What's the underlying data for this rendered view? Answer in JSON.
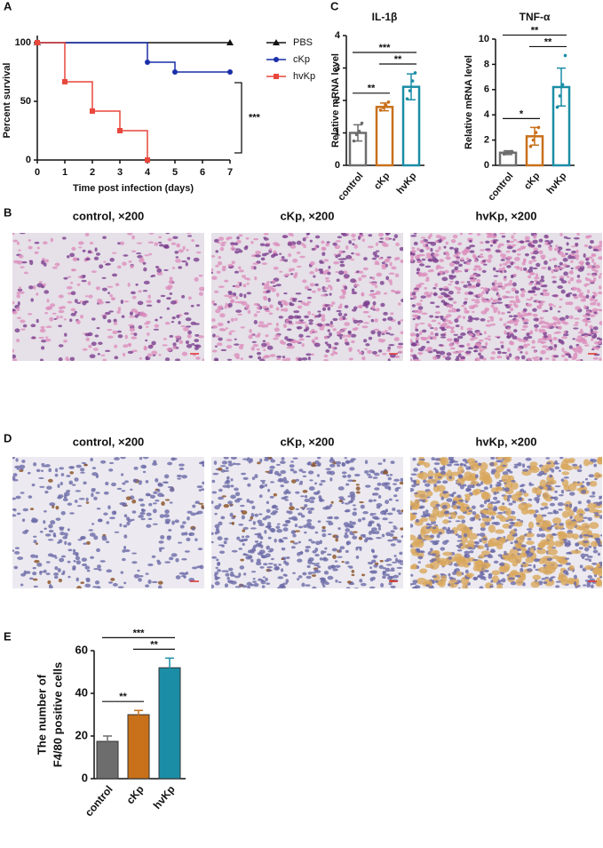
{
  "panel_labels": [
    "A",
    "B",
    "C",
    "D",
    "E"
  ],
  "chart_data": [
    {
      "type": "line",
      "step": true,
      "xlabel": "Time post infection (days)",
      "ylabel": "Percent survival",
      "xlim": [
        0,
        7
      ],
      "xticks": [
        0,
        1,
        2,
        3,
        4,
        5,
        6,
        7
      ],
      "ylim": [
        0,
        100
      ],
      "yticks": [
        0,
        50,
        100
      ],
      "legend": "right",
      "series": [
        {
          "name": "PBS",
          "color": "#111111",
          "marker": "triangle",
          "x": [
            0,
            7
          ],
          "values": [
            100,
            100
          ]
        },
        {
          "name": "cKp",
          "color": "#1a2fa8",
          "marker": "circle",
          "x": [
            0,
            4,
            5,
            7
          ],
          "values": [
            100,
            83.3,
            75,
            75
          ]
        },
        {
          "name": "hvKp",
          "color": "#e8473c",
          "marker": "square",
          "x": [
            0,
            1,
            2,
            3,
            4
          ],
          "values": [
            100,
            66.7,
            41.7,
            25,
            0
          ]
        }
      ],
      "annotations": [
        {
          "text": "***"
        }
      ]
    },
    {
      "type": "bar",
      "style": "outline",
      "title": "IL-1β",
      "ylabel": "Relative mRNA level",
      "categories": [
        "control",
        "cKp",
        "hvKp"
      ],
      "colors": [
        "#6d6d6d",
        "#c8701a",
        "#1b8ea6"
      ],
      "values": [
        1.0,
        1.8,
        2.42
      ],
      "errors": [
        0.25,
        0.12,
        0.4
      ],
      "points": [
        [
          0.75,
          0.95,
          1.05,
          1.3
        ],
        [
          1.7,
          1.78,
          1.85,
          1.95
        ],
        [
          2.05,
          2.3,
          2.6,
          2.85
        ]
      ],
      "ylim": [
        0,
        4
      ],
      "yticks": [
        0,
        1,
        2,
        3,
        4
      ],
      "comparisons": [
        {
          "label": "**",
          "pair": [
            0,
            1
          ]
        },
        {
          "label": "**",
          "pair": [
            1,
            2
          ]
        },
        {
          "label": "***",
          "pair": [
            0,
            2
          ]
        }
      ]
    },
    {
      "type": "bar",
      "style": "outline",
      "title": "TNF-α",
      "ylabel": "Relative mRNA level",
      "categories": [
        "control",
        "cKp",
        "hvKp"
      ],
      "colors": [
        "#6d6d6d",
        "#c8701a",
        "#1b8ea6"
      ],
      "values": [
        1.0,
        2.3,
        6.2
      ],
      "errors": [
        0.15,
        0.7,
        1.5
      ],
      "points": [
        [
          0.9,
          1.0,
          1.05,
          1.1
        ],
        [
          1.5,
          2.0,
          2.6,
          3.0
        ],
        [
          4.6,
          5.5,
          6.4,
          8.7
        ]
      ],
      "ylim": [
        0,
        10
      ],
      "yticks": [
        0,
        2,
        4,
        6,
        8,
        10
      ],
      "comparisons": [
        {
          "label": "*",
          "pair": [
            0,
            1
          ]
        },
        {
          "label": "**",
          "pair": [
            1,
            2
          ]
        },
        {
          "label": "**",
          "pair": [
            0,
            2
          ]
        }
      ]
    },
    {
      "type": "bar",
      "style": "filled",
      "ylabel": [
        "The number of",
        "F4/80 positive cells"
      ],
      "categories": [
        "control",
        "cKp",
        "hvKp"
      ],
      "colors": [
        "#6d6d6d",
        "#c8701a",
        "#1b8ea6"
      ],
      "values": [
        17.5,
        30,
        52
      ],
      "errors": [
        2.5,
        2,
        4.5
      ],
      "ylim": [
        0,
        60
      ],
      "yticks": [
        0,
        20,
        40,
        60
      ],
      "comparisons": [
        {
          "label": "**",
          "pair": [
            0,
            1
          ]
        },
        {
          "label": "**",
          "pair": [
            1,
            2
          ]
        },
        {
          "label": "***",
          "pair": [
            0,
            2
          ]
        }
      ]
    }
  ],
  "micrographs": [
    {
      "captions": [
        "control, ×200",
        "cKp, ×200",
        "hvKp, ×200"
      ]
    },
    {
      "captions": [
        "control, ×200",
        "cKp, ×200",
        "hvKp, ×200"
      ]
    }
  ]
}
